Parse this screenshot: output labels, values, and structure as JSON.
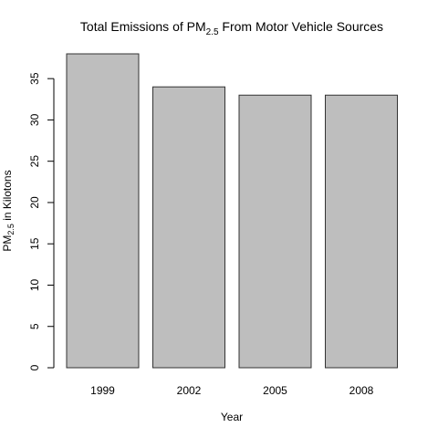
{
  "chart_data": {
    "type": "bar",
    "title": {
      "pre": "Total Emissions of PM",
      "sub": "2.5",
      "post": " From Motor Vehicle Sources"
    },
    "xlabel": "Year",
    "ylabel": {
      "pre": "PM",
      "sub": "2.5",
      "post": " in Kilotons"
    },
    "categories": [
      "1999",
      "2002",
      "2005",
      "2008"
    ],
    "values": [
      38,
      34,
      33,
      33
    ],
    "ylim": [
      0,
      38
    ],
    "yticks": [
      0,
      5,
      10,
      15,
      20,
      25,
      30,
      35
    ],
    "grid": false,
    "bar_color": "#bebebe",
    "bar_border_color": "#333333"
  }
}
